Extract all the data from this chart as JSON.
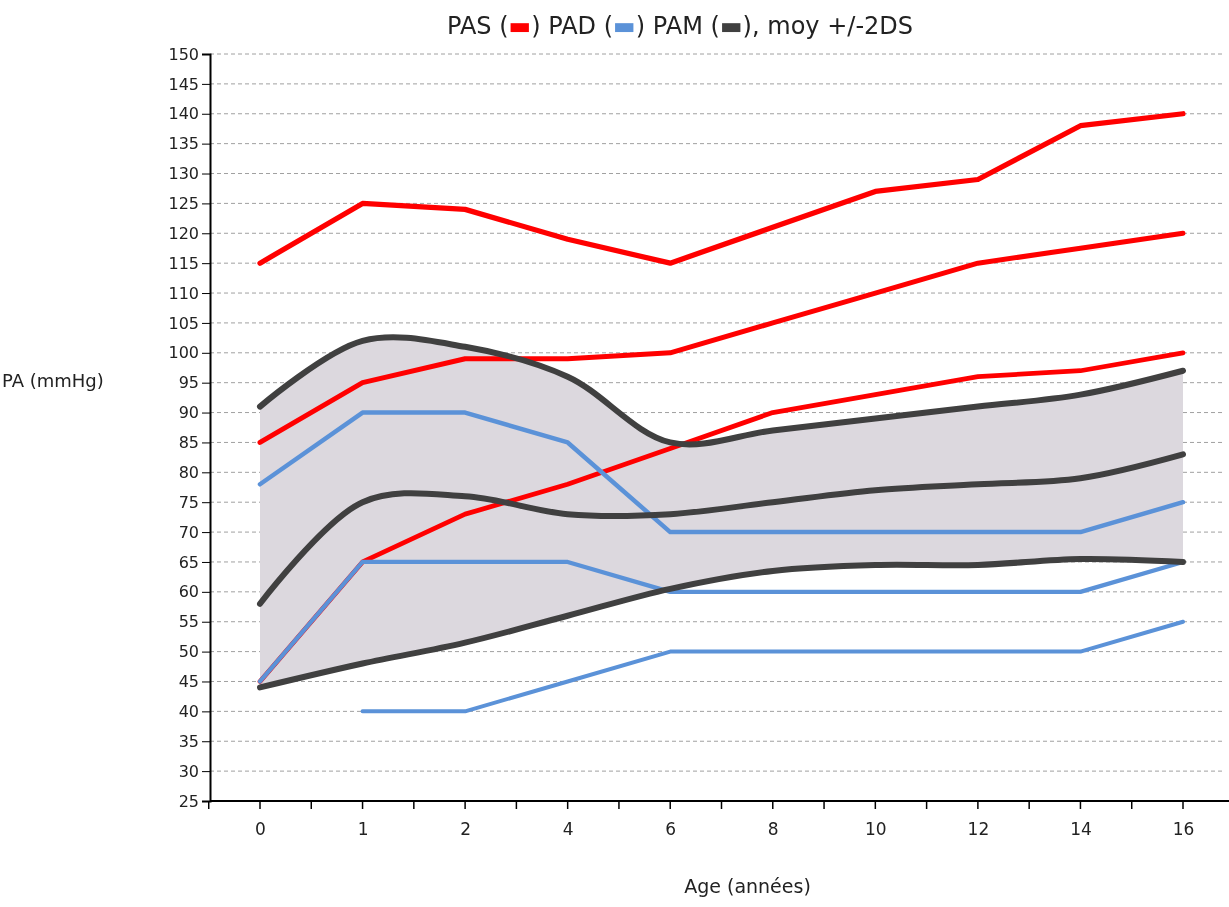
{
  "chart_data": {
    "type": "line",
    "title": "PAS (▬) PAD (▬) PAM (▬), moy +/-2DS",
    "xlabel": "Age (années)",
    "ylabel": "PA (mmHg)",
    "categories": [
      "0",
      "1",
      "2",
      "4",
      "6",
      "8",
      "10",
      "12",
      "14",
      "16"
    ],
    "ylim": [
      25,
      150
    ],
    "yticks": [
      25,
      30,
      35,
      40,
      45,
      50,
      55,
      60,
      65,
      70,
      75,
      80,
      85,
      90,
      95,
      100,
      105,
      110,
      115,
      120,
      125,
      130,
      135,
      140,
      145,
      150
    ],
    "grid": "y",
    "line_style": "solid",
    "marker": "none",
    "series": [
      {
        "color": "#ff0000",
        "values": [
          115,
          125,
          124,
          119,
          115,
          121,
          127,
          129,
          138,
          140
        ]
      },
      {
        "color": "#ff0000",
        "values": [
          85,
          95,
          99,
          99,
          100,
          105,
          110,
          115,
          117.5,
          120
        ]
      },
      {
        "color": "#ff0000",
        "values": [
          45,
          65,
          73,
          78,
          84,
          90,
          93,
          96,
          97,
          100
        ]
      },
      {
        "color": "#5b92d8",
        "values": [
          78,
          90,
          90,
          85,
          70,
          70,
          70,
          70,
          70,
          75
        ]
      },
      {
        "color": "#5b92d8",
        "values": [
          45,
          65,
          65,
          65,
          60,
          60,
          60,
          60,
          60,
          65
        ]
      },
      {
        "color": "#5b92d8",
        "values": [
          null,
          40,
          40,
          45,
          50,
          50,
          50,
          50,
          50,
          55
        ]
      },
      {
        "color": "#404040",
        "values": [
          91,
          102,
          101,
          96,
          85,
          87,
          89,
          91,
          93,
          97
        ]
      },
      {
        "color": "#404040",
        "values": [
          58,
          75,
          76,
          73,
          73,
          75,
          77,
          78,
          79,
          83
        ],
        "lower": [
          44,
          48,
          51.5,
          56,
          60.5,
          63.5,
          64.5,
          64.5,
          65.5,
          65
        ],
        "upper": [
          91,
          102,
          101,
          96,
          85,
          87,
          89,
          91,
          93,
          97
        ]
      },
      {
        "color": "#404040",
        "values": [
          44,
          48,
          51.5,
          56,
          60.5,
          63.5,
          64.5,
          64.5,
          65.5,
          65
        ]
      }
    ]
  }
}
